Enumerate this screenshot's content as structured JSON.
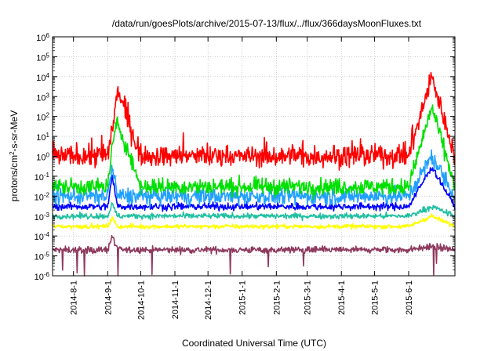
{
  "chart_data": {
    "type": "line",
    "title": "/data/run/goesPlots/archive/2015-07-13/flux/../flux/366daysMoonFluxes.txt",
    "xlabel": "Coordinated Universal Time (UTC)",
    "ylabel": {
      "base": "protons/cm",
      "sup": "2",
      "rest": "-s-sr-MeV"
    },
    "yscale": "log",
    "ylim": [
      1e-06,
      1000000.0
    ],
    "xlim": [
      "2014-07-13",
      "2015-07-13"
    ],
    "grid": true,
    "legend": "none",
    "x_ticks": [
      "2014-8-1",
      "2014-9-1",
      "2014-10-1",
      "2014-11-1",
      "2014-12-1",
      "2015-1-1",
      "2015-2-1",
      "2015-3-1",
      "2015-4-1",
      "2015-5-1",
      "2015-6-1"
    ],
    "y_ticks": [
      {
        "base": "10",
        "exp": "-6"
      },
      {
        "base": "10",
        "exp": "-5"
      },
      {
        "base": "10",
        "exp": "-4"
      },
      {
        "base": "10",
        "exp": "-3"
      },
      {
        "base": "10",
        "exp": "-2"
      },
      {
        "base": "10",
        "exp": "-1"
      },
      {
        "base": "10",
        "exp": "0"
      },
      {
        "base": "10",
        "exp": "1"
      },
      {
        "base": "10",
        "exp": "2"
      },
      {
        "base": "10",
        "exp": "3"
      },
      {
        "base": "10",
        "exp": "4"
      },
      {
        "base": "10",
        "exp": "5"
      },
      {
        "base": "10",
        "exp": "6"
      }
    ],
    "series_colors": [
      "#8e3a5e",
      "#ffff00",
      "#20c0a0",
      "#0000ff",
      "#20a0ff",
      "#00e000",
      "#ff0000"
    ],
    "series": [
      {
        "color": "#8e3a5e",
        "x": [
          "2014-07-13",
          "2014-08-01",
          "2014-09-01",
          "2014-09-05",
          "2014-09-10",
          "2014-10-01",
          "2014-11-01",
          "2014-12-01",
          "2015-01-01",
          "2015-02-01",
          "2015-03-01",
          "2015-04-01",
          "2015-05-01",
          "2015-06-01",
          "2015-06-22",
          "2015-07-13"
        ],
        "y": [
          2e-05,
          2e-05,
          2e-05,
          0.0001,
          2e-05,
          2e-05,
          2e-05,
          2e-05,
          2e-05,
          2e-05,
          2e-05,
          2e-05,
          2e-05,
          2e-05,
          3e-05,
          2e-05
        ]
      },
      {
        "color": "#ffff00",
        "x": [
          "2014-07-13",
          "2014-08-01",
          "2014-09-01",
          "2014-09-05",
          "2014-09-10",
          "2014-10-01",
          "2014-11-01",
          "2014-12-01",
          "2015-01-01",
          "2015-02-01",
          "2015-03-01",
          "2015-04-01",
          "2015-05-01",
          "2015-06-01",
          "2015-06-22",
          "2015-07-13"
        ],
        "y": [
          0.0003,
          0.0003,
          0.0003,
          0.0008,
          0.0003,
          0.0003,
          0.0003,
          0.0003,
          0.0003,
          0.0003,
          0.0003,
          0.0003,
          0.0003,
          0.0003,
          0.001,
          0.0003
        ]
      },
      {
        "color": "#20c0a0",
        "x": [
          "2014-07-13",
          "2014-08-01",
          "2014-09-01",
          "2014-09-05",
          "2014-09-10",
          "2014-10-01",
          "2014-11-01",
          "2014-12-01",
          "2015-01-01",
          "2015-02-01",
          "2015-03-01",
          "2015-04-01",
          "2015-05-01",
          "2015-06-01",
          "2015-06-22",
          "2015-07-13"
        ],
        "y": [
          0.001,
          0.001,
          0.001,
          0.004,
          0.001,
          0.001,
          0.001,
          0.001,
          0.001,
          0.001,
          0.001,
          0.001,
          0.001,
          0.001,
          0.003,
          0.001
        ]
      },
      {
        "color": "#0000ff",
        "x": [
          "2014-07-13",
          "2014-08-01",
          "2014-09-01",
          "2014-09-05",
          "2014-09-10",
          "2014-10-01",
          "2014-11-01",
          "2014-12-01",
          "2015-01-01",
          "2015-02-01",
          "2015-03-01",
          "2015-04-01",
          "2015-05-01",
          "2015-06-01",
          "2015-06-22",
          "2015-07-13"
        ],
        "y": [
          0.003,
          0.003,
          0.003,
          0.1,
          0.003,
          0.003,
          0.003,
          0.003,
          0.003,
          0.003,
          0.003,
          0.003,
          0.003,
          0.003,
          0.3,
          0.003
        ]
      },
      {
        "color": "#20a0ff",
        "x": [
          "2014-07-13",
          "2014-08-01",
          "2014-09-01",
          "2014-09-05",
          "2014-09-10",
          "2014-10-01",
          "2014-11-01",
          "2014-12-01",
          "2015-01-01",
          "2015-02-01",
          "2015-03-01",
          "2015-04-01",
          "2015-05-01",
          "2015-06-01",
          "2015-06-22",
          "2015-07-13"
        ],
        "y": [
          0.01,
          0.01,
          0.01,
          0.3,
          0.01,
          0.01,
          0.01,
          0.01,
          0.01,
          0.01,
          0.01,
          0.01,
          0.01,
          0.01,
          1,
          0.01
        ]
      },
      {
        "color": "#00e000",
        "x": [
          "2014-07-13",
          "2014-08-01",
          "2014-09-01",
          "2014-09-05",
          "2014-09-10",
          "2014-10-01",
          "2014-11-01",
          "2014-12-01",
          "2015-01-01",
          "2015-02-01",
          "2015-03-01",
          "2015-04-01",
          "2015-05-01",
          "2015-06-01",
          "2015-06-22",
          "2015-07-13"
        ],
        "y": [
          0.03,
          0.03,
          0.03,
          3,
          50,
          0.03,
          0.03,
          0.03,
          0.03,
          0.03,
          0.03,
          0.03,
          0.03,
          0.03,
          300,
          0.03
        ]
      },
      {
        "color": "#ff0000",
        "x": [
          "2014-07-13",
          "2014-08-01",
          "2014-09-01",
          "2014-09-05",
          "2014-09-10",
          "2014-10-01",
          "2014-11-01",
          "2014-12-01",
          "2015-01-01",
          "2015-02-01",
          "2015-03-01",
          "2015-04-01",
          "2015-05-01",
          "2015-06-01",
          "2015-06-22",
          "2015-07-13"
        ],
        "y": [
          1,
          1,
          1,
          20,
          2000,
          1,
          1,
          1,
          1,
          1,
          1,
          1,
          1,
          1,
          10000,
          1
        ]
      }
    ]
  }
}
